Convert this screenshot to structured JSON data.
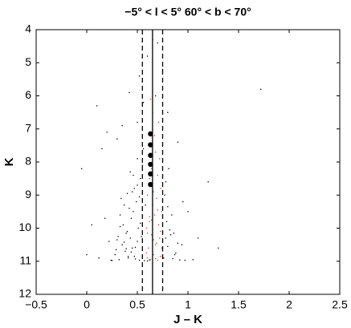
{
  "chart_data": {
    "type": "scatter",
    "title": "−5° < l < 5°   60° < b < 70°",
    "xlabel": "J – K",
    "ylabel": "K",
    "xlim": [
      -0.5,
      2.5
    ],
    "ylim": [
      4,
      12
    ],
    "y_inverted": true,
    "xticks": [
      {
        "value": -0.5,
        "label": "−0.5"
      },
      0,
      0.5,
      1,
      1.5,
      2,
      2.5
    ],
    "yticks": [
      4,
      5,
      6,
      7,
      8,
      9,
      10,
      11,
      12
    ],
    "grid": false,
    "vlines": [
      {
        "x": 0.55,
        "style": "dashed",
        "color": "#000000"
      },
      {
        "x": 0.65,
        "style": "solid",
        "color": "#000000"
      },
      {
        "x": 0.75,
        "style": "dashed",
        "color": "#000000"
      }
    ],
    "series": [
      {
        "color": "#000000",
        "marker": "point",
        "x": [
          0.32,
          0.41,
          0.47,
          0.52,
          0.38,
          0.85,
          0.92,
          0.28,
          0.45,
          0.88,
          0.35,
          0.43,
          0.5,
          0.8,
          0.83,
          0.55,
          0.3,
          0.4,
          0.48,
          0.9,
          0.36,
          0.44,
          0.51,
          0.79,
          0.82,
          0.33,
          0.46,
          0.53,
          0.78,
          0.39,
          0.42,
          0.49,
          0.37,
          0.52,
          0.8,
          0.45,
          0.55,
          0.34,
          0.77,
          0.5,
          0.47,
          0.53,
          0.43,
          0.78,
          0.55,
          0.4,
          0.5,
          0.81,
          0.56,
          0.46,
          0.3,
          0.5,
          0.2,
          0.56,
          0.42,
          0.8,
          0.15,
          0.52,
          0.35,
          0.6,
          0.0,
          0.05,
          1.0,
          1.2,
          1.72,
          0.9,
          1.1,
          -0.05,
          0.1,
          0.7,
          0.25,
          0.29,
          0.31,
          0.87,
          0.94,
          0.97,
          0.6,
          0.62,
          0.57,
          0.84,
          0.44,
          0.48,
          0.37,
          0.41,
          0.54,
          0.33,
          0.39,
          0.86,
          0.76,
          0.58,
          0.24,
          0.22,
          1.05,
          0.95,
          0.18,
          0.65,
          0.75,
          0.68,
          0.12,
          1.3
        ],
        "values": [
          10.95,
          10.9,
          10.85,
          10.97,
          10.7,
          10.92,
          10.96,
          10.8,
          10.6,
          10.75,
          10.5,
          10.3,
          10.4,
          10.55,
          10.2,
          10.88,
          10.35,
          10.1,
          10.93,
          10.45,
          9.9,
          9.7,
          10.0,
          9.8,
          10.05,
          9.6,
          9.5,
          9.85,
          10.3,
          10.15,
          9.4,
          9.2,
          9.3,
          9.05,
          9.35,
          8.9,
          9.45,
          9.1,
          9.0,
          8.7,
          8.8,
          8.5,
          8.3,
          8.6,
          8.1,
          8.95,
          7.9,
          8.2,
          7.6,
          8.4,
          7.3,
          6.8,
          7.1,
          6.2,
          5.9,
          6.5,
          7.6,
          5.4,
          6.9,
          4.8,
          10.8,
          9.9,
          9.5,
          8.6,
          5.8,
          7.4,
          10.3,
          8.2,
          6.3,
          4.4,
          10.98,
          10.65,
          10.25,
          10.8,
          10.5,
          10.97,
          10.99,
          10.96,
          10.98,
          9.6,
          10.72,
          10.58,
          10.42,
          10.85,
          10.25,
          9.95,
          10.62,
          10.15,
          10.9,
          9.3,
          10.97,
          10.4,
          10.95,
          9.2,
          9.7,
          4.3,
          5.2,
          6.0,
          10.9,
          10.6
        ]
      },
      {
        "color": "#e0382c",
        "marker": "point",
        "x": [
          0.6,
          0.63,
          0.66,
          0.7,
          0.73,
          0.61,
          0.68,
          0.72,
          0.64,
          0.75,
          0.59,
          0.62,
          0.67,
          0.71,
          0.74,
          0.65,
          0.69,
          0.6,
          0.73,
          0.66,
          0.62,
          0.7,
          0.64,
          0.72,
          0.68,
          0.61,
          0.67,
          0.71,
          0.65,
          0.63,
          0.69,
          0.6,
          0.74,
          0.66,
          0.62,
          0.7,
          0.64,
          0.73,
          0.68,
          0.59
        ],
        "values": [
          10.9,
          10.95,
          10.8,
          10.97,
          10.85,
          10.6,
          10.5,
          10.3,
          10.2,
          10.7,
          10.0,
          9.8,
          9.6,
          9.9,
          9.5,
          9.3,
          9.1,
          9.0,
          8.8,
          8.9,
          8.5,
          8.4,
          8.2,
          7.9,
          7.7,
          7.5,
          7.2,
          6.8,
          6.5,
          6.1,
          10.45,
          10.15,
          10.6,
          10.35,
          9.65,
          9.45,
          9.75,
          10.1,
          10.92,
          10.75
        ]
      },
      {
        "color": "#000000",
        "marker": "circle",
        "x": [
          0.63,
          0.63,
          0.63,
          0.63,
          0.63,
          0.63
        ],
        "values": [
          7.15,
          7.48,
          7.8,
          8.07,
          8.36,
          8.68
        ]
      }
    ]
  }
}
